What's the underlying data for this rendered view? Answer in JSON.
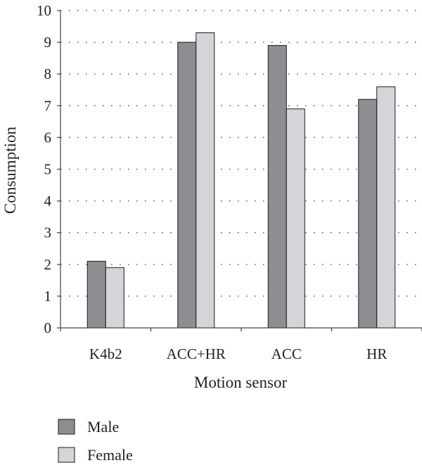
{
  "chart_data": {
    "type": "bar",
    "title": "",
    "xlabel": "Motion sensor",
    "ylabel": "Consumption",
    "categories": [
      "K4b2",
      "ACC+HR",
      "ACC",
      "HR"
    ],
    "series": [
      {
        "name": "Male",
        "values": [
          2.1,
          9.0,
          8.9,
          7.2
        ],
        "color": "#8c8e92"
      },
      {
        "name": "Female",
        "values": [
          1.9,
          9.3,
          6.9,
          7.6
        ],
        "color": "#d4d5d8"
      }
    ],
    "ylim": [
      0,
      10
    ],
    "yticks": [
      "0",
      "1",
      "2",
      "3",
      "4",
      "5",
      "6",
      "7",
      "8",
      "9",
      "10"
    ],
    "grid": "horizontal-dotted",
    "legend_position": "bottom-left"
  }
}
